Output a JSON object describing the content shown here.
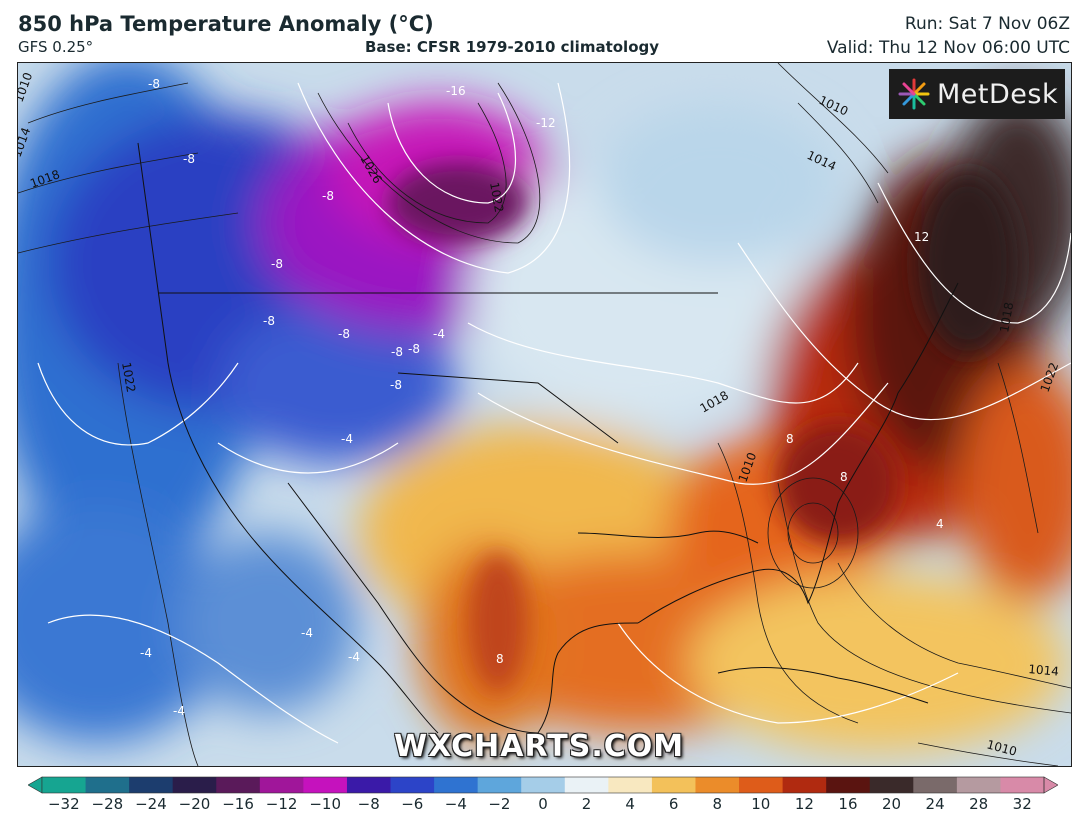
{
  "header": {
    "title": "850 hPa Temperature Anomaly (°C)",
    "model": "GFS 0.25°",
    "base": "Base: CFSR 1979-2010 climatology",
    "run": "Run: Sat 7 Nov 06Z",
    "valid": "Valid: Thu 12 Nov 06:00 UTC"
  },
  "logo": {
    "text": "MetDesk",
    "icon": "metdesk-logo-icon"
  },
  "watermark": "WXCHARTS.COM",
  "colorbar": {
    "ticks": [
      "−32",
      "−28",
      "−24",
      "−20",
      "−16",
      "−12",
      "−10",
      "−8",
      "−6",
      "−4",
      "−2",
      "0",
      "2",
      "4",
      "6",
      "8",
      "10",
      "12",
      "16",
      "20",
      "24",
      "28",
      "32"
    ],
    "colors": [
      "#16a591",
      "#1f6f8c",
      "#1c3d6e",
      "#2a1d4a",
      "#5a1a5a",
      "#a0169a",
      "#c512bd",
      "#3a1aa8",
      "#2c44c8",
      "#2f73d1",
      "#5ea6dc",
      "#a5cde8",
      "#eaf2f6",
      "#f8e8c0",
      "#f3c15a",
      "#eb8c2a",
      "#de5c1a",
      "#b02a10",
      "#5a1410",
      "#3a2a2a",
      "#7a6a6a",
      "#b59aa0",
      "#d88aa8"
    ]
  },
  "map_labels": {
    "isobars": [
      "1010",
      "1014",
      "1018",
      "1022",
      "1026",
      "1022",
      "1010",
      "1014",
      "1018",
      "1022",
      "1010",
      "1014",
      "1010",
      "1018"
    ],
    "anomalies": [
      "-8",
      "-8",
      "-8",
      "-8",
      "-8",
      "-8",
      "-8",
      "-8",
      "-8",
      "-16",
      "-12",
      "-4",
      "-4",
      "-4",
      "-4",
      "-4",
      "-4",
      "8",
      "8",
      "8",
      "12",
      "4"
    ]
  }
}
